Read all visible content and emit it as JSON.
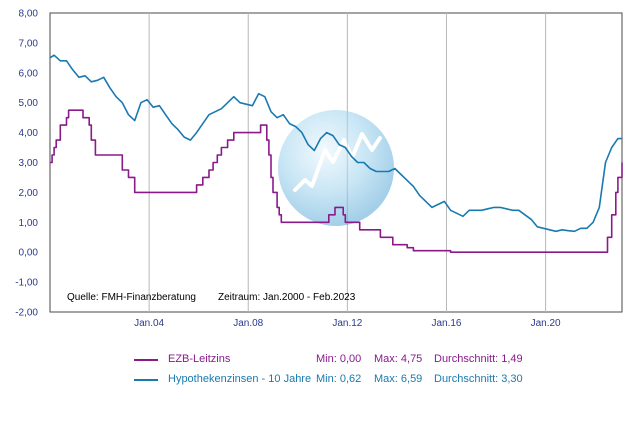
{
  "chart_data": {
    "type": "line",
    "ylim": [
      -2,
      8
    ],
    "xlim": [
      "2000-01",
      "2023-02"
    ],
    "y_ticks": [
      "8,00",
      "7,00",
      "6,00",
      "5,00",
      "4,00",
      "3,00",
      "2,00",
      "1,00",
      "0,00",
      "-1,00",
      "-2,00"
    ],
    "x_ticks": [
      {
        "date": "2004-01",
        "label": "Jan.04"
      },
      {
        "date": "2008-01",
        "label": "Jan.08"
      },
      {
        "date": "2012-01",
        "label": "Jan.12"
      },
      {
        "date": "2016-01",
        "label": "Jan.16"
      },
      {
        "date": "2020-01",
        "label": "Jan.20"
      }
    ],
    "grid": "vertical-lines",
    "annotations": {
      "source": "Quelle: FMH-Finanzberatung",
      "period": "Zeitraum: Jan.2000 - Feb.2023"
    },
    "series": [
      {
        "name": "EZB-Leitzins",
        "color": "#8a1a8a",
        "step": true,
        "min": "Min: 0,00",
        "max": "Max: 4,75",
        "avg": "Durchschnitt: 1,49",
        "x": [
          "2000-01",
          "2000-02",
          "2000-03",
          "2000-04",
          "2000-06",
          "2000-09",
          "2000-10",
          "2001-05",
          "2001-08",
          "2001-09",
          "2001-11",
          "2002-12",
          "2003-03",
          "2003-06",
          "2005-12",
          "2006-03",
          "2006-06",
          "2006-08",
          "2006-10",
          "2006-12",
          "2007-03",
          "2007-06",
          "2008-07",
          "2008-10",
          "2008-11",
          "2008-12",
          "2009-01",
          "2009-03",
          "2009-04",
          "2009-05",
          "2011-04",
          "2011-07",
          "2011-11",
          "2011-12",
          "2012-07",
          "2013-05",
          "2013-11",
          "2014-06",
          "2014-09",
          "2016-03",
          "2022-07",
          "2022-09",
          "2022-11",
          "2022-12",
          "2023-02"
        ],
        "values": [
          3.0,
          3.25,
          3.5,
          3.75,
          4.25,
          4.5,
          4.75,
          4.5,
          4.25,
          3.75,
          3.25,
          2.75,
          2.5,
          2.0,
          2.25,
          2.5,
          2.75,
          3.0,
          3.25,
          3.5,
          3.75,
          4.0,
          4.25,
          3.75,
          3.25,
          2.5,
          2.0,
          1.5,
          1.25,
          1.0,
          1.25,
          1.5,
          1.25,
          1.0,
          0.75,
          0.5,
          0.25,
          0.15,
          0.05,
          0.0,
          0.5,
          1.25,
          2.0,
          2.5,
          3.0
        ]
      },
      {
        "name": "Hypothekenzinsen - 10 Jahre",
        "color": "#1a7ab0",
        "step": false,
        "min": "Min: 0,62",
        "max": "Max: 6,59",
        "avg": "Durchschnitt: 3,30",
        "x": [
          "2000-01",
          "2000-03",
          "2000-06",
          "2000-09",
          "2000-12",
          "2001-03",
          "2001-06",
          "2001-09",
          "2001-12",
          "2002-03",
          "2002-06",
          "2002-09",
          "2002-12",
          "2003-03",
          "2003-06",
          "2003-09",
          "2003-12",
          "2004-03",
          "2004-06",
          "2004-09",
          "2004-12",
          "2005-03",
          "2005-06",
          "2005-09",
          "2005-12",
          "2006-03",
          "2006-06",
          "2006-09",
          "2006-12",
          "2007-03",
          "2007-06",
          "2007-09",
          "2007-12",
          "2008-03",
          "2008-06",
          "2008-09",
          "2008-12",
          "2009-03",
          "2009-06",
          "2009-09",
          "2009-12",
          "2010-03",
          "2010-06",
          "2010-09",
          "2010-12",
          "2011-03",
          "2011-06",
          "2011-09",
          "2011-12",
          "2012-03",
          "2012-06",
          "2012-09",
          "2012-12",
          "2013-03",
          "2013-06",
          "2013-09",
          "2013-12",
          "2014-03",
          "2014-06",
          "2014-09",
          "2014-12",
          "2015-03",
          "2015-06",
          "2015-09",
          "2015-12",
          "2016-03",
          "2016-06",
          "2016-09",
          "2016-12",
          "2017-03",
          "2017-06",
          "2017-09",
          "2017-12",
          "2018-03",
          "2018-06",
          "2018-09",
          "2018-12",
          "2019-03",
          "2019-06",
          "2019-09",
          "2019-12",
          "2020-03",
          "2020-06",
          "2020-09",
          "2020-12",
          "2021-03",
          "2021-06",
          "2021-09",
          "2021-12",
          "2022-03",
          "2022-06",
          "2022-09",
          "2022-12",
          "2023-02"
        ],
        "values": [
          6.5,
          6.59,
          6.4,
          6.4,
          6.1,
          5.85,
          5.9,
          5.7,
          5.75,
          5.85,
          5.5,
          5.2,
          5.0,
          4.6,
          4.4,
          5.0,
          5.1,
          4.85,
          4.9,
          4.6,
          4.3,
          4.1,
          3.85,
          3.75,
          4.0,
          4.3,
          4.6,
          4.7,
          4.8,
          5.0,
          5.2,
          5.0,
          4.95,
          4.9,
          5.3,
          5.2,
          4.7,
          4.5,
          4.6,
          4.3,
          4.2,
          4.0,
          3.6,
          3.4,
          3.8,
          4.0,
          3.9,
          3.6,
          3.5,
          3.2,
          3.0,
          3.0,
          2.8,
          2.7,
          2.7,
          2.7,
          2.8,
          2.6,
          2.4,
          2.2,
          1.9,
          1.7,
          1.5,
          1.6,
          1.7,
          1.4,
          1.3,
          1.2,
          1.4,
          1.4,
          1.4,
          1.45,
          1.5,
          1.5,
          1.45,
          1.4,
          1.4,
          1.25,
          1.1,
          0.85,
          0.8,
          0.75,
          0.7,
          0.75,
          0.72,
          0.7,
          0.8,
          0.8,
          1.0,
          1.5,
          3.0,
          3.5,
          3.8,
          3.8
        ]
      }
    ]
  }
}
